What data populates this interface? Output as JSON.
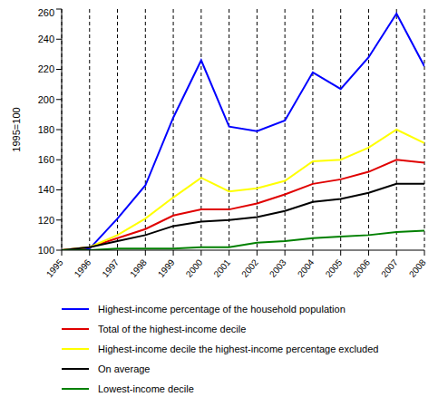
{
  "chart_data": {
    "type": "line",
    "y_label": "1995=100",
    "x": [
      1995,
      1996,
      1997,
      1998,
      1999,
      2000,
      2001,
      2002,
      2003,
      2004,
      2005,
      2006,
      2007,
      2008
    ],
    "xlim": [
      1995,
      2008
    ],
    "xticks": [
      1995,
      1996,
      1997,
      1998,
      1999,
      2000,
      2001,
      2002,
      2003,
      2004,
      2005,
      2006,
      2007,
      2008
    ],
    "ylim": [
      100,
      260
    ],
    "yticks": [
      100,
      120,
      140,
      160,
      180,
      200,
      220,
      240,
      260
    ],
    "grid": "x",
    "series": [
      {
        "name": "Highest-income percentage of the household population",
        "color": "#0000ff",
        "values": [
          100,
          101,
          121,
          143,
          188,
          226,
          182,
          179,
          186,
          218,
          207,
          228,
          257,
          222
        ]
      },
      {
        "name": "Total of the highest-income decile",
        "color": "#e00000",
        "values": [
          100,
          102,
          108,
          114,
          123,
          127,
          127,
          131,
          137,
          144,
          147,
          152,
          160,
          158
        ]
      },
      {
        "name": "Highest-income decile the highest-income percentage excluded",
        "color": "#ffff00",
        "values": [
          100,
          102,
          110,
          121,
          135,
          148,
          139,
          141,
          146,
          159,
          160,
          168,
          180,
          171
        ]
      },
      {
        "name": "On average",
        "color": "#000000",
        "values": [
          100,
          102,
          106,
          110,
          116,
          119,
          120,
          122,
          126,
          132,
          134,
          138,
          144,
          144
        ]
      },
      {
        "name": "Lowest-income decile",
        "color": "#008000",
        "values": [
          100,
          100,
          101,
          101,
          101,
          102,
          102,
          105,
          106,
          108,
          109,
          110,
          112,
          113
        ]
      }
    ]
  }
}
